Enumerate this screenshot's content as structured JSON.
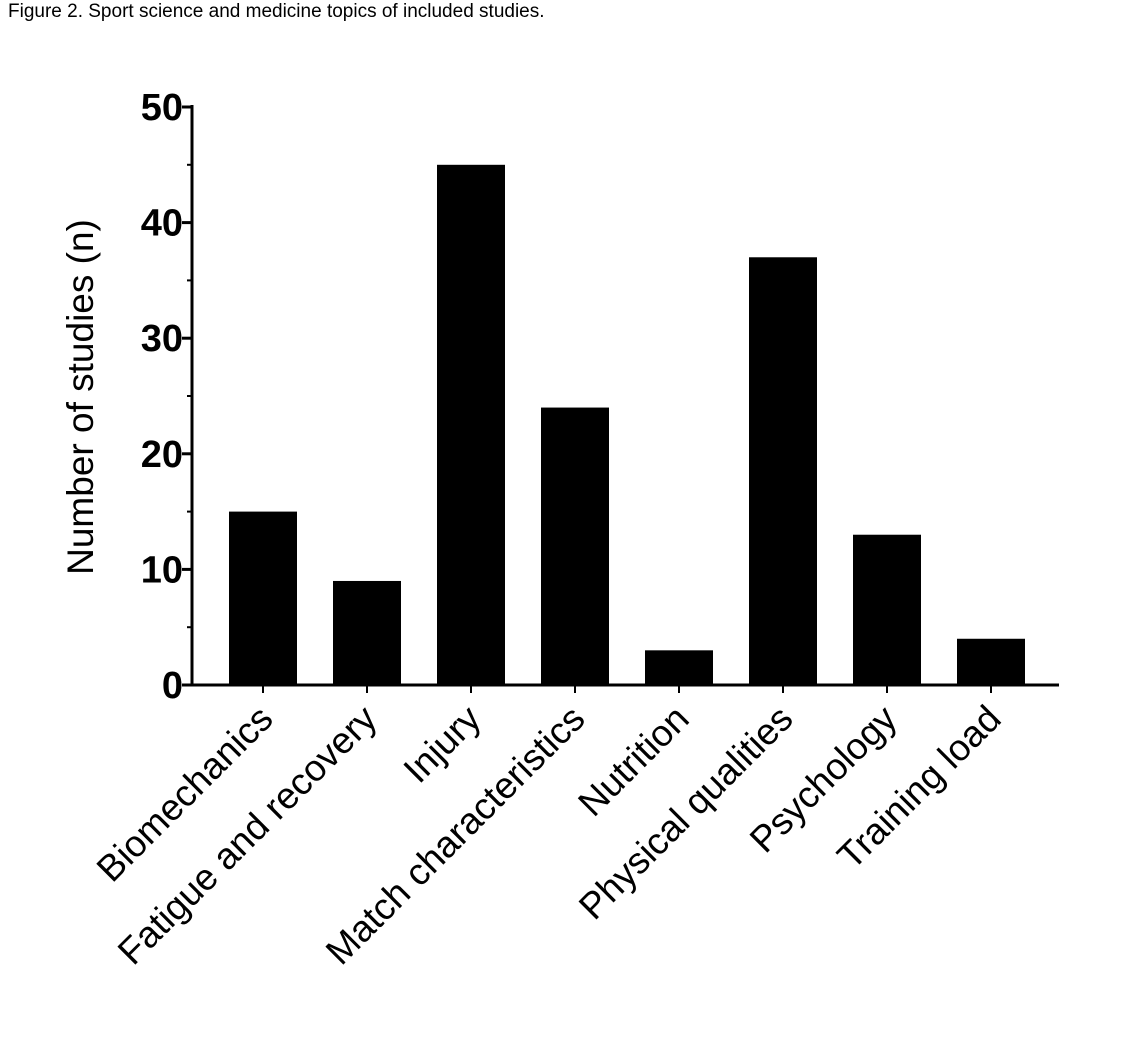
{
  "figure": {
    "caption": "Figure 2. Sport science and medicine topics of included studies."
  },
  "chart_data": {
    "type": "bar",
    "title": "",
    "xlabel": "",
    "ylabel": "Number of studies (n)",
    "ylim": [
      0,
      50
    ],
    "yticks": [
      "0",
      "10",
      "20",
      "30",
      "40",
      "50"
    ],
    "categories": [
      "Biomechanics",
      "Fatigue and recovery",
      "Injury",
      "Match characteristics",
      "Nutrition",
      "Physical qualities",
      "Psychology",
      "Training load"
    ],
    "values": [
      15,
      9,
      45,
      24,
      3,
      37,
      13,
      4
    ],
    "bar_color": "#000000",
    "grid": false
  }
}
